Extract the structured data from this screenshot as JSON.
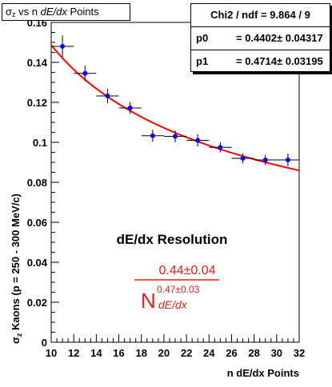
{
  "title": {
    "sigma": "σ",
    "sub": "z",
    "mid": " vs n ",
    "ital": "dE/dx",
    "tail": " Points"
  },
  "stats": {
    "header": "Chi2 / ndf = 9.864 / 9",
    "params": [
      {
        "name": "p0",
        "value": "= 0.4402± 0.04317"
      },
      {
        "name": "p1",
        "value": "= 0.4714± 0.03195"
      }
    ]
  },
  "annotation": {
    "label": "dE/dx Resolution",
    "numerator": "0.44±0.04",
    "base": "N",
    "exponent": "0.47±0.03",
    "subscript": "dE/dx",
    "color": "#e02020"
  },
  "colors": {
    "points": "#0000ff",
    "fit": "#ff0000",
    "axis": "#000000"
  },
  "chart_data": {
    "type": "scatter",
    "xlabel": "n dE/dx Points",
    "ylabel_sigma": "σ",
    "ylabel_sub": "z",
    "ylabel_rest": " Kaons  (p = 250 - 300 MeV/c)",
    "xlim": [
      10,
      32
    ],
    "ylim": [
      0,
      0.16
    ],
    "xticks": [
      "10",
      "12",
      "14",
      "16",
      "18",
      "20",
      "22",
      "24",
      "26",
      "28",
      "30",
      "32"
    ],
    "yticks": [
      "0",
      "0.02",
      "0.04",
      "0.06",
      "0.08",
      "0.1",
      "0.12",
      "0.14",
      "0.16"
    ],
    "grid": false,
    "series": [
      {
        "x": [
          11,
          13,
          15,
          17,
          19,
          21,
          23,
          25,
          27,
          29,
          31
        ],
        "y": [
          0.148,
          0.1345,
          0.1232,
          0.1172,
          0.1033,
          0.103,
          0.101,
          0.0975,
          0.092,
          0.0912,
          0.0912
        ],
        "xerr": [
          1,
          1,
          1,
          1,
          1,
          1,
          1,
          1,
          1,
          1,
          1
        ],
        "yerr": [
          0.0055,
          0.004,
          0.0035,
          0.003,
          0.003,
          0.003,
          0.003,
          0.0025,
          0.0025,
          0.0025,
          0.0032
        ]
      }
    ],
    "fit": {
      "function": "p0 * x^(-p1)",
      "p0": 0.4402,
      "p1": 0.4714,
      "x_range": [
        10,
        32
      ]
    }
  }
}
